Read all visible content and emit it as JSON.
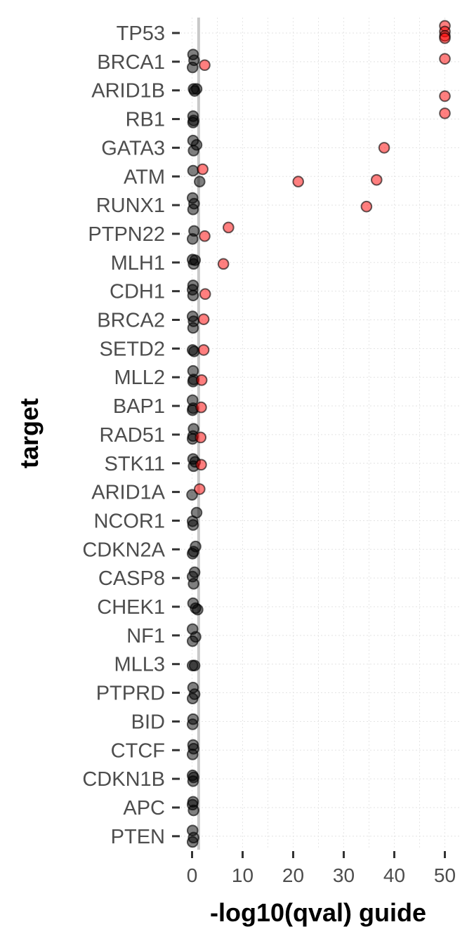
{
  "chart_data": {
    "type": "scatter",
    "title": "",
    "xlabel": "-log10(qval) guide",
    "ylabel": "target",
    "xlim": [
      -2,
      51.5
    ],
    "x_ticks": [
      0,
      10,
      20,
      30,
      40,
      50
    ],
    "x_tick_labels": [
      "0",
      "10",
      "20",
      "30",
      "40",
      "50"
    ],
    "threshold_x": 1.3,
    "grid": "dotted",
    "legend": "none",
    "colors": {
      "significant": "#ff0000",
      "not_significant": "#000000",
      "threshold": "#c8c8c8"
    },
    "categories": [
      "TP53",
      "BRCA1",
      "ARID1B",
      "RB1",
      "GATA3",
      "ATM",
      "RUNX1",
      "PTPN22",
      "MLH1",
      "CDH1",
      "BRCA2",
      "SETD2",
      "MLL2",
      "BAP1",
      "RAD51",
      "STK11",
      "ARID1A",
      "NCOR1",
      "CDKN2A",
      "CASP8",
      "CHEK1",
      "NF1",
      "MLL3",
      "PTPRD",
      "BID",
      "CTCF",
      "CDKN1B",
      "APC",
      "PTEN"
    ],
    "points": [
      {
        "target": "TP53",
        "x": 50,
        "jitter": -0.25,
        "sig": true
      },
      {
        "target": "TP53",
        "x": 50,
        "jitter": -0.05,
        "sig": true
      },
      {
        "target": "TP53",
        "x": 50,
        "jitter": 0.1,
        "sig": true
      },
      {
        "target": "TP53",
        "x": 50,
        "jitter": 0.18,
        "sig": true
      },
      {
        "target": "BRCA1",
        "x": 0.2,
        "jitter": -0.25,
        "sig": false
      },
      {
        "target": "BRCA1",
        "x": 0.4,
        "jitter": -0.05,
        "sig": false
      },
      {
        "target": "BRCA1",
        "x": 0.1,
        "jitter": 0.2,
        "sig": false
      },
      {
        "target": "BRCA1",
        "x": 2.5,
        "jitter": 0.12,
        "sig": true
      },
      {
        "target": "BRCA1",
        "x": 50,
        "jitter": -0.1,
        "sig": true
      },
      {
        "target": "ARID1B",
        "x": 0.3,
        "jitter": -0.05,
        "sig": false
      },
      {
        "target": "ARID1B",
        "x": 0.9,
        "jitter": -0.05,
        "sig": false
      },
      {
        "target": "ARID1B",
        "x": 0.5,
        "jitter": 0.02,
        "sig": false
      },
      {
        "target": "ARID1B",
        "x": 50,
        "jitter": 0.2,
        "sig": true
      },
      {
        "target": "RB1",
        "x": 0.2,
        "jitter": -0.1,
        "sig": false
      },
      {
        "target": "RB1",
        "x": 0.3,
        "jitter": 0.05,
        "sig": false
      },
      {
        "target": "RB1",
        "x": 0.2,
        "jitter": 0.12,
        "sig": false
      },
      {
        "target": "RB1",
        "x": 50,
        "jitter": -0.2,
        "sig": true
      },
      {
        "target": "GATA3",
        "x": 0.2,
        "jitter": -0.25,
        "sig": false
      },
      {
        "target": "GATA3",
        "x": 0.9,
        "jitter": -0.1,
        "sig": false
      },
      {
        "target": "GATA3",
        "x": 0.3,
        "jitter": 0.1,
        "sig": false
      },
      {
        "target": "GATA3",
        "x": 38,
        "jitter": 0,
        "sig": true
      },
      {
        "target": "ATM",
        "x": 0.2,
        "jitter": -0.2,
        "sig": false
      },
      {
        "target": "ATM",
        "x": 2.1,
        "jitter": -0.25,
        "sig": true
      },
      {
        "target": "ATM",
        "x": 1.5,
        "jitter": 0.18,
        "sig": false
      },
      {
        "target": "ATM",
        "x": 21,
        "jitter": 0.18,
        "sig": true
      },
      {
        "target": "ATM",
        "x": 36.5,
        "jitter": 0.12,
        "sig": true
      },
      {
        "target": "RUNX1",
        "x": 0.1,
        "jitter": -0.25,
        "sig": false
      },
      {
        "target": "RUNX1",
        "x": 0.4,
        "jitter": -0.05,
        "sig": false
      },
      {
        "target": "RUNX1",
        "x": 0.2,
        "jitter": 0.15,
        "sig": false
      },
      {
        "target": "RUNX1",
        "x": 34.5,
        "jitter": 0.05,
        "sig": true
      },
      {
        "target": "PTPN22",
        "x": 0.4,
        "jitter": -0.1,
        "sig": false
      },
      {
        "target": "PTPN22",
        "x": 0.1,
        "jitter": 0.18,
        "sig": false
      },
      {
        "target": "PTPN22",
        "x": 7.2,
        "jitter": -0.22,
        "sig": true
      },
      {
        "target": "PTPN22",
        "x": 2.5,
        "jitter": 0.08,
        "sig": true
      },
      {
        "target": "MLH1",
        "x": 0.1,
        "jitter": -0.1,
        "sig": false
      },
      {
        "target": "MLH1",
        "x": 0.6,
        "jitter": -0.08,
        "sig": false
      },
      {
        "target": "MLH1",
        "x": 0.3,
        "jitter": 0.05,
        "sig": false
      },
      {
        "target": "MLH1",
        "x": 6.2,
        "jitter": 0.05,
        "sig": true
      },
      {
        "target": "CDH1",
        "x": 0.2,
        "jitter": -0.2,
        "sig": false
      },
      {
        "target": "CDH1",
        "x": 0.1,
        "jitter": -0.05,
        "sig": false
      },
      {
        "target": "CDH1",
        "x": 0.2,
        "jitter": 0.15,
        "sig": false
      },
      {
        "target": "CDH1",
        "x": 2.6,
        "jitter": 0.1,
        "sig": true
      },
      {
        "target": "BRCA2",
        "x": 0.1,
        "jitter": -0.12,
        "sig": false
      },
      {
        "target": "BRCA2",
        "x": 0.3,
        "jitter": 0.05,
        "sig": false
      },
      {
        "target": "BRCA2",
        "x": 0.2,
        "jitter": 0.28,
        "sig": false
      },
      {
        "target": "BRCA2",
        "x": 2.3,
        "jitter": -0.02,
        "sig": true
      },
      {
        "target": "SETD2",
        "x": 0.1,
        "jitter": 0.05,
        "sig": false
      },
      {
        "target": "SETD2",
        "x": 0.4,
        "jitter": 0.1,
        "sig": false
      },
      {
        "target": "SETD2",
        "x": 2.3,
        "jitter": 0.05,
        "sig": true
      },
      {
        "target": "MLL2",
        "x": 0.2,
        "jitter": -0.22,
        "sig": false
      },
      {
        "target": "MLL2",
        "x": 0.3,
        "jitter": 0.08,
        "sig": false
      },
      {
        "target": "MLL2",
        "x": 0.2,
        "jitter": 0.15,
        "sig": false
      },
      {
        "target": "MLL2",
        "x": 1.9,
        "jitter": 0.1,
        "sig": true
      },
      {
        "target": "BAP1",
        "x": 0.1,
        "jitter": -0.2,
        "sig": false
      },
      {
        "target": "BAP1",
        "x": 0.2,
        "jitter": 0.08,
        "sig": false
      },
      {
        "target": "BAP1",
        "x": 0.1,
        "jitter": 0.15,
        "sig": false
      },
      {
        "target": "BAP1",
        "x": 1.8,
        "jitter": 0.05,
        "sig": true
      },
      {
        "target": "RAD51",
        "x": 0.3,
        "jitter": -0.2,
        "sig": false
      },
      {
        "target": "RAD51",
        "x": 0.2,
        "jitter": 0.05,
        "sig": false
      },
      {
        "target": "RAD51",
        "x": 0.1,
        "jitter": 0.15,
        "sig": false
      },
      {
        "target": "RAD51",
        "x": 1.7,
        "jitter": 0.1,
        "sig": true
      },
      {
        "target": "STK11",
        "x": 0.2,
        "jitter": -0.15,
        "sig": false
      },
      {
        "target": "STK11",
        "x": 0.6,
        "jitter": -0.05,
        "sig": false
      },
      {
        "target": "STK11",
        "x": 0.3,
        "jitter": 0.1,
        "sig": false
      },
      {
        "target": "STK11",
        "x": 1.8,
        "jitter": 0.05,
        "sig": true
      },
      {
        "target": "ARID1A",
        "x": 0,
        "jitter": 0.1,
        "sig": false
      },
      {
        "target": "ARID1A",
        "x": 1.5,
        "jitter": -0.1,
        "sig": true
      },
      {
        "target": "NCOR1",
        "x": 0.9,
        "jitter": -0.28,
        "sig": false
      },
      {
        "target": "NCOR1",
        "x": 0.1,
        "jitter": 0.02,
        "sig": false
      },
      {
        "target": "NCOR1",
        "x": 0.2,
        "jitter": 0.15,
        "sig": false
      },
      {
        "target": "CDKN2A",
        "x": 0.7,
        "jitter": -0.1,
        "sig": false
      },
      {
        "target": "CDKN2A",
        "x": 0.3,
        "jitter": 0.08,
        "sig": false
      },
      {
        "target": "CDKN2A",
        "x": 0.1,
        "jitter": 0.15,
        "sig": false
      },
      {
        "target": "CASP8",
        "x": 0.5,
        "jitter": -0.2,
        "sig": false
      },
      {
        "target": "CASP8",
        "x": 0.1,
        "jitter": -0.05,
        "sig": false
      },
      {
        "target": "CASP8",
        "x": 0.3,
        "jitter": 0.2,
        "sig": false
      },
      {
        "target": "CHEK1",
        "x": 0.2,
        "jitter": -0.12,
        "sig": false
      },
      {
        "target": "CHEK1",
        "x": 0.7,
        "jitter": 0.05,
        "sig": false
      },
      {
        "target": "CHEK1",
        "x": 1.1,
        "jitter": 0.1,
        "sig": false
      },
      {
        "target": "NF1",
        "x": 0.1,
        "jitter": -0.22,
        "sig": false
      },
      {
        "target": "NF1",
        "x": 0.7,
        "jitter": 0.05,
        "sig": false
      },
      {
        "target": "NF1",
        "x": 0.1,
        "jitter": 0.2,
        "sig": false
      },
      {
        "target": "MLL3",
        "x": 0.1,
        "jitter": 0.05,
        "sig": false
      },
      {
        "target": "MLL3",
        "x": 0.5,
        "jitter": 0.05,
        "sig": false
      },
      {
        "target": "PTPRD",
        "x": 0.2,
        "jitter": -0.18,
        "sig": false
      },
      {
        "target": "PTPRD",
        "x": 0.5,
        "jitter": 0.05,
        "sig": false
      },
      {
        "target": "PTPRD",
        "x": 0.1,
        "jitter": 0.2,
        "sig": false
      },
      {
        "target": "BID",
        "x": 0.2,
        "jitter": -0.08,
        "sig": false
      },
      {
        "target": "BID",
        "x": 0.1,
        "jitter": 0.1,
        "sig": false
      },
      {
        "target": "CTCF",
        "x": 0.2,
        "jitter": -0.18,
        "sig": false
      },
      {
        "target": "CTCF",
        "x": 0.3,
        "jitter": -0.05,
        "sig": false
      },
      {
        "target": "CTCF",
        "x": 0.1,
        "jitter": 0.15,
        "sig": false
      },
      {
        "target": "CDKN1B",
        "x": 0.1,
        "jitter": -0.12,
        "sig": false
      },
      {
        "target": "CDKN1B",
        "x": 0.3,
        "jitter": -0.05,
        "sig": false
      },
      {
        "target": "CDKN1B",
        "x": 0.2,
        "jitter": 0.08,
        "sig": false
      },
      {
        "target": "APC",
        "x": 0.2,
        "jitter": -0.2,
        "sig": false
      },
      {
        "target": "APC",
        "x": 0.1,
        "jitter": -0.1,
        "sig": false
      },
      {
        "target": "APC",
        "x": 0.3,
        "jitter": 0.1,
        "sig": false
      },
      {
        "target": "PTEN",
        "x": 0.1,
        "jitter": -0.2,
        "sig": false
      },
      {
        "target": "PTEN",
        "x": 0.3,
        "jitter": 0.05,
        "sig": false
      },
      {
        "target": "PTEN",
        "x": 0.1,
        "jitter": 0.2,
        "sig": false
      }
    ]
  }
}
